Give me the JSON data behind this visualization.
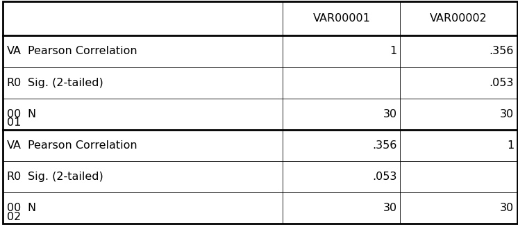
{
  "col_headers": [
    "",
    "VAR00001",
    "VAR00002"
  ],
  "groups": [
    {
      "left_lines": [
        "VA",
        "R0",
        "00",
        "01"
      ],
      "rows": [
        "Pearson Correlation",
        "Sig. (2-tailed)",
        "N"
      ],
      "var1": [
        "1",
        "",
        "30"
      ],
      "var2": [
        ".356",
        ".053",
        "30"
      ]
    },
    {
      "left_lines": [
        "VA",
        "R0",
        "00",
        "02"
      ],
      "rows": [
        "Pearson Correlation",
        "Sig. (2-tailed)",
        "N"
      ],
      "var1": [
        ".356",
        ".053",
        "30"
      ],
      "var2": [
        "1",
        "",
        "30"
      ]
    }
  ],
  "bg_color": "#ffffff",
  "border_color": "#000000",
  "text_color": "#000000",
  "font_size": 11.5,
  "header_font_size": 11.5,
  "thick_lw": 2.0,
  "thin_lw": 0.6
}
